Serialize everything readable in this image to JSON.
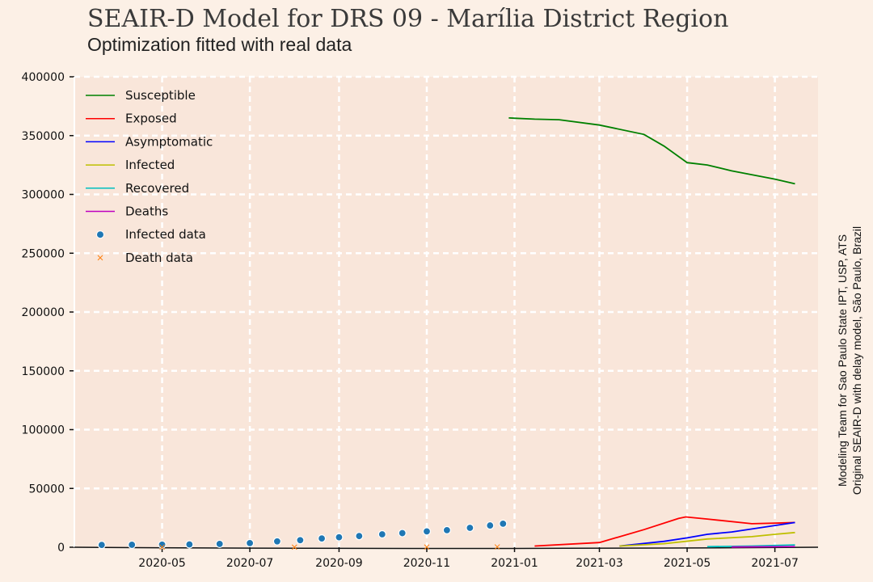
{
  "header": {
    "title": "SEAIR-D Model for DRS 09 - Marília District Region",
    "subtitle": "Optimization fitted with real data"
  },
  "credits": {
    "line1": "Modeling Team for Sao Paulo State IPT, USP, ATS",
    "line2": "Original SEAIR-D with delay model, São Paulo, Brazil"
  },
  "colors": {
    "background": "#fcf0e6",
    "plot_background": "#f9e6da",
    "grid": "#ffffff",
    "Susceptible": "#008000",
    "Exposed": "#ff0000",
    "Asymptomatic": "#0000ff",
    "Infected": "#bfbf00",
    "Recovered": "#00bfbf",
    "Deaths": "#bf00bf",
    "Infected data": "#1f77b4",
    "Death data": "#ff7f0e"
  },
  "chart_data": {
    "type": "line",
    "title": "SEAIR-D Model for DRS 09 - Marília District Region",
    "subtitle": "Optimization fitted with real data",
    "xlabel": "",
    "ylabel": "",
    "x_range": [
      "2020-03-01",
      "2021-07-31"
    ],
    "ylim": [
      0,
      400000
    ],
    "y_ticks": [
      0,
      50000,
      100000,
      150000,
      200000,
      250000,
      300000,
      350000,
      400000
    ],
    "x_ticks": [
      {
        "date": "2020-05-01",
        "label": "2020-05"
      },
      {
        "date": "2020-07-01",
        "label": "2020-07"
      },
      {
        "date": "2020-09-01",
        "label": "2020-09"
      },
      {
        "date": "2020-11-01",
        "label": "2020-11"
      },
      {
        "date": "2021-01-01",
        "label": "2021-01"
      },
      {
        "date": "2021-03-01",
        "label": "2021-03"
      },
      {
        "date": "2021-05-01",
        "label": "2021-05"
      },
      {
        "date": "2021-07-01",
        "label": "2021-07"
      }
    ],
    "grid": true,
    "legend_position": "top-left",
    "series": [
      {
        "name": "Susceptible",
        "kind": "line",
        "points": [
          [
            "2020-12-28",
            365000
          ],
          [
            "2021-01-15",
            364000
          ],
          [
            "2021-02-01",
            363500
          ],
          [
            "2021-03-01",
            359000
          ],
          [
            "2021-04-01",
            351000
          ],
          [
            "2021-04-15",
            341000
          ],
          [
            "2021-05-01",
            327000
          ],
          [
            "2021-05-15",
            325000
          ],
          [
            "2021-06-01",
            320000
          ],
          [
            "2021-07-01",
            313000
          ],
          [
            "2021-07-15",
            309000
          ]
        ]
      },
      {
        "name": "Exposed",
        "kind": "line",
        "points": [
          [
            "2021-01-15",
            1000
          ],
          [
            "2021-03-01",
            4000
          ],
          [
            "2021-04-01",
            15000
          ],
          [
            "2021-04-25",
            24500
          ],
          [
            "2021-04-30",
            25800
          ],
          [
            "2021-05-15",
            24000
          ],
          [
            "2021-06-15",
            20000
          ],
          [
            "2021-07-01",
            20500
          ],
          [
            "2021-07-15",
            21000
          ]
        ]
      },
      {
        "name": "Asymptomatic",
        "kind": "line",
        "points": [
          [
            "2021-03-15",
            1000
          ],
          [
            "2021-04-15",
            5000
          ],
          [
            "2021-05-01",
            8000
          ],
          [
            "2021-05-15",
            11000
          ],
          [
            "2021-06-01",
            13000
          ],
          [
            "2021-07-01",
            18500
          ],
          [
            "2021-07-15",
            21000
          ]
        ]
      },
      {
        "name": "Infected",
        "kind": "line",
        "points": [
          [
            "2021-03-15",
            1000
          ],
          [
            "2021-04-15",
            3000
          ],
          [
            "2021-05-15",
            7000
          ],
          [
            "2021-06-15",
            9000
          ],
          [
            "2021-07-01",
            11000
          ],
          [
            "2021-07-15",
            12500
          ]
        ]
      },
      {
        "name": "Recovered",
        "kind": "line",
        "points": [
          [
            "2021-05-15",
            500
          ],
          [
            "2021-06-15",
            1000
          ],
          [
            "2021-07-01",
            1500
          ],
          [
            "2021-07-15",
            2000
          ]
        ]
      },
      {
        "name": "Deaths",
        "kind": "line",
        "points": [
          [
            "2021-06-01",
            200
          ],
          [
            "2021-07-15",
            600
          ]
        ]
      },
      {
        "name": "Infected data",
        "kind": "scatter",
        "points": [
          [
            "2020-03-20",
            2000
          ],
          [
            "2020-04-10",
            2100
          ],
          [
            "2020-05-01",
            2200
          ],
          [
            "2020-05-20",
            2400
          ],
          [
            "2020-06-10",
            2800
          ],
          [
            "2020-07-01",
            3500
          ],
          [
            "2020-07-20",
            5000
          ],
          [
            "2020-08-05",
            6000
          ],
          [
            "2020-08-20",
            7500
          ],
          [
            "2020-09-01",
            8500
          ],
          [
            "2020-09-15",
            9500
          ],
          [
            "2020-10-01",
            11000
          ],
          [
            "2020-10-15",
            12000
          ],
          [
            "2020-11-01",
            13500
          ],
          [
            "2020-11-15",
            14500
          ],
          [
            "2020-12-01",
            16500
          ],
          [
            "2020-12-15",
            18500
          ],
          [
            "2020-12-24",
            20000
          ]
        ]
      },
      {
        "name": "Death data",
        "kind": "scatter",
        "points": [
          [
            "2020-05-01",
            50
          ],
          [
            "2020-08-01",
            100
          ],
          [
            "2020-11-01",
            200
          ],
          [
            "2020-12-20",
            300
          ]
        ]
      }
    ]
  }
}
